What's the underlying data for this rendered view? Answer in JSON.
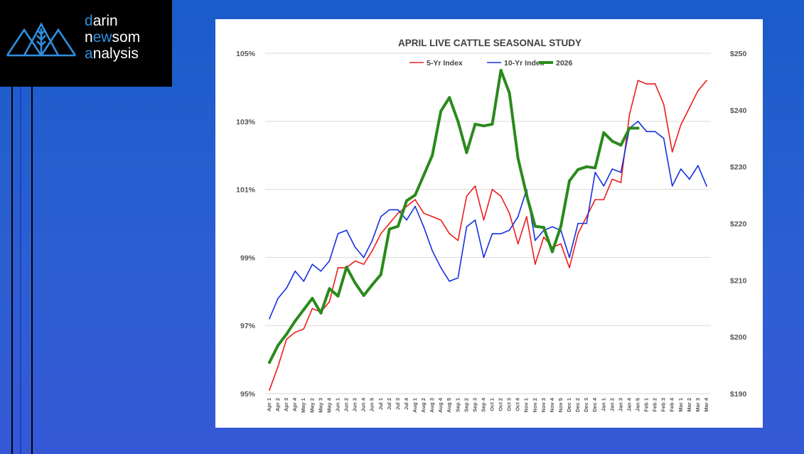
{
  "brand": {
    "line1": {
      "accent": "d",
      "rest": "arin"
    },
    "line2": {
      "pre": "n",
      "accent": "ew",
      "rest": "som"
    },
    "line3": {
      "accent": "a",
      "rest": "nalysis"
    },
    "accent_color": "#2f8fe0"
  },
  "chart_data": {
    "type": "line",
    "title": "APRIL LIVE CATTLE SEASONAL STUDY",
    "xlabel": "",
    "ylabel_left": "",
    "ylabel_right": "",
    "categories": [
      "Apr 1",
      "Apr 2",
      "Apr 3",
      "Apr 4",
      "May 1",
      "May 2",
      "May 3",
      "May 4",
      "Jun 1",
      "Jun 2",
      "Jun 3",
      "Jun 4",
      "Jun 5",
      "Jul 1",
      "Jul 2",
      "Jul 3",
      "Jul 4",
      "Aug 1",
      "Aug 2",
      "Aug 3",
      "Aug 4",
      "Aug 5",
      "Sep 1",
      "Sep 2",
      "Sep 3",
      "Sep 4",
      "Oct 1",
      "Oct 2",
      "Oct 3",
      "Oct 4",
      "Nov 1",
      "Nov 2",
      "Nov 3",
      "Nov 4",
      "Nov 5",
      "Dec 1",
      "Dec 2",
      "Dec 3",
      "Dec 4",
      "Jan 1",
      "Jan 2",
      "Jan 3",
      "Jan 4",
      "Jan 5",
      "Feb 1",
      "Feb 2",
      "Feb 3",
      "Feb 4",
      "Mar 1",
      "Mar 2",
      "Mar 3",
      "Mar 4"
    ],
    "left_axis": {
      "min": 95,
      "max": 105,
      "ticks": [
        95,
        97,
        99,
        101,
        103,
        105
      ],
      "tick_labels": [
        "95%",
        "97%",
        "99%",
        "101%",
        "103%",
        "105%"
      ]
    },
    "right_axis": {
      "min": 190,
      "max": 250,
      "ticks": [
        190,
        200,
        210,
        220,
        230,
        240,
        250
      ],
      "tick_labels": [
        "$190",
        "$200",
        "$210",
        "$220",
        "$230",
        "$240",
        "$250"
      ]
    },
    "legend_position": "top-center",
    "series": [
      {
        "name": "5-Yr Index",
        "axis": "left",
        "color": "#ee1c1c",
        "width": 1.6,
        "values": [
          95.1,
          95.8,
          96.6,
          96.8,
          96.9,
          97.5,
          97.4,
          97.7,
          98.7,
          98.7,
          98.9,
          98.8,
          99.2,
          99.7,
          100.0,
          100.3,
          100.5,
          100.7,
          100.3,
          100.2,
          100.1,
          99.7,
          99.5,
          100.8,
          101.1,
          100.1,
          101.0,
          100.8,
          100.3,
          99.4,
          100.2,
          98.8,
          99.6,
          99.3,
          99.4,
          98.7,
          99.7,
          100.2,
          100.7,
          100.7,
          101.3,
          101.2,
          103.2,
          104.2,
          104.1,
          104.1,
          103.5,
          102.1,
          102.9,
          103.4,
          103.9,
          104.2
        ]
      },
      {
        "name": "10-Yr Index",
        "axis": "left",
        "color": "#1530e0",
        "width": 1.6,
        "values": [
          97.2,
          97.8,
          98.1,
          98.6,
          98.3,
          98.8,
          98.6,
          98.9,
          99.7,
          99.8,
          99.3,
          99.0,
          99.5,
          100.2,
          100.4,
          100.4,
          100.1,
          100.5,
          99.9,
          99.2,
          98.7,
          98.3,
          98.4,
          99.9,
          100.1,
          99.0,
          99.7,
          99.7,
          99.8,
          100.2,
          101.0,
          99.5,
          99.8,
          99.9,
          99.8,
          99.0,
          100.0,
          100.0,
          101.5,
          101.1,
          101.6,
          101.5,
          102.8,
          103.0,
          102.7,
          102.7,
          102.5,
          101.1,
          101.6,
          101.3,
          101.7,
          101.1
        ]
      },
      {
        "name": "2026",
        "axis": "right",
        "color": "#2a8a1c",
        "width": 4,
        "values": [
          195.5,
          198.5,
          200.5,
          202.8,
          204.8,
          206.8,
          204.2,
          208.5,
          207.2,
          212.3,
          209.5,
          207.3,
          209.2,
          211.0,
          219.0,
          219.5,
          224.0,
          225.0,
          228.5,
          232.0,
          239.8,
          242.2,
          238.0,
          232.5,
          237.5,
          237.2,
          237.5,
          247.0,
          243.0,
          231.5,
          225.0,
          219.5,
          219.3,
          215.0,
          219.5,
          227.5,
          229.5,
          230.0,
          229.8,
          236.0,
          234.5,
          233.8,
          236.8,
          236.8,
          null,
          null,
          null,
          null,
          null,
          null,
          null,
          null
        ]
      }
    ]
  }
}
